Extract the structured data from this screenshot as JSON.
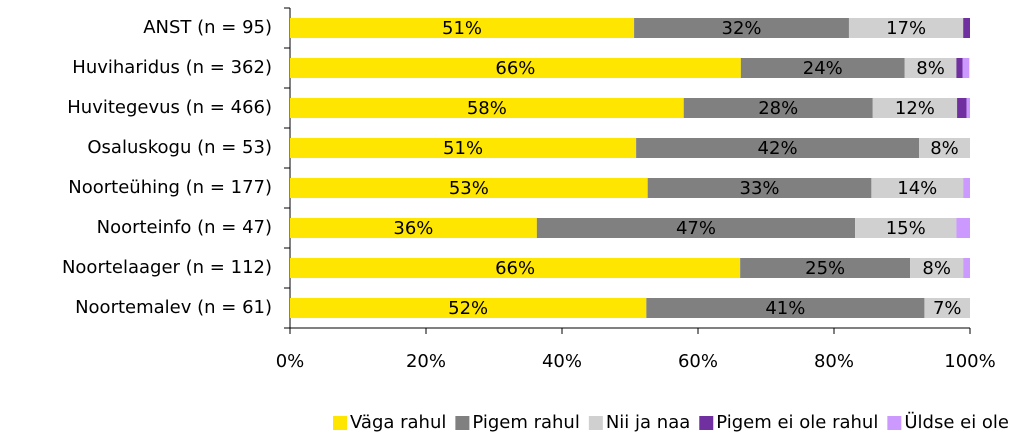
{
  "chart_data": {
    "type": "stacked_bar_horizontal",
    "categories": [
      "ANST (n = 95)",
      "Huviharidus (n = 362)",
      "Huvitegevus (n = 466)",
      "Osaluskogu (n = 53)",
      "Noorteühing (n = 177)",
      "Noorteinfo (n = 47)",
      "Noortelaager (n = 112)",
      "Noortemalev (n = 61)"
    ],
    "series": [
      {
        "name": "Väga rahul",
        "color": "#ffe600",
        "values": [
          50.6,
          66.3,
          57.9,
          50.9,
          52.6,
          36.3,
          66.2,
          52.4
        ],
        "value_labels": [
          "51%",
          "66%",
          "58%",
          "51%",
          "53%",
          "36%",
          "66%",
          "52%"
        ]
      },
      {
        "name": "Pigem rahul",
        "color": "#808080",
        "values": [
          31.6,
          24.1,
          27.8,
          41.6,
          32.9,
          46.8,
          25.0,
          40.9
        ],
        "value_labels": [
          "32%",
          "24%",
          "28%",
          "42%",
          "33%",
          "47%",
          "25%",
          "41%"
        ]
      },
      {
        "name": "Nii ja naa",
        "color": "#d0d0d0",
        "values": [
          16.8,
          7.6,
          12.4,
          7.5,
          13.5,
          14.9,
          7.8,
          6.7
        ],
        "value_labels": [
          "17%",
          "8%",
          "12%",
          "8%",
          "14%",
          "15%",
          "8%",
          "7%"
        ]
      },
      {
        "name": "Pigem ei ole rahul",
        "color": "#7030a0",
        "values": [
          1.0,
          0.9,
          1.4,
          0,
          0,
          0,
          0,
          0
        ]
      },
      {
        "name": "Üldse ei ole rahul",
        "color": "#cc99ff",
        "values": [
          0,
          1.0,
          0.5,
          0,
          1.0,
          2.0,
          1.0,
          0
        ]
      }
    ],
    "xlim": [
      0,
      100
    ],
    "xticks": [
      {
        "value": 0,
        "label": "0%"
      },
      {
        "value": 20,
        "label": "20%"
      },
      {
        "value": 40,
        "label": "40%"
      },
      {
        "value": 60,
        "label": "60%"
      },
      {
        "value": 80,
        "label": "80%"
      },
      {
        "value": 100,
        "label": "100%"
      }
    ],
    "legend": "bottom"
  }
}
